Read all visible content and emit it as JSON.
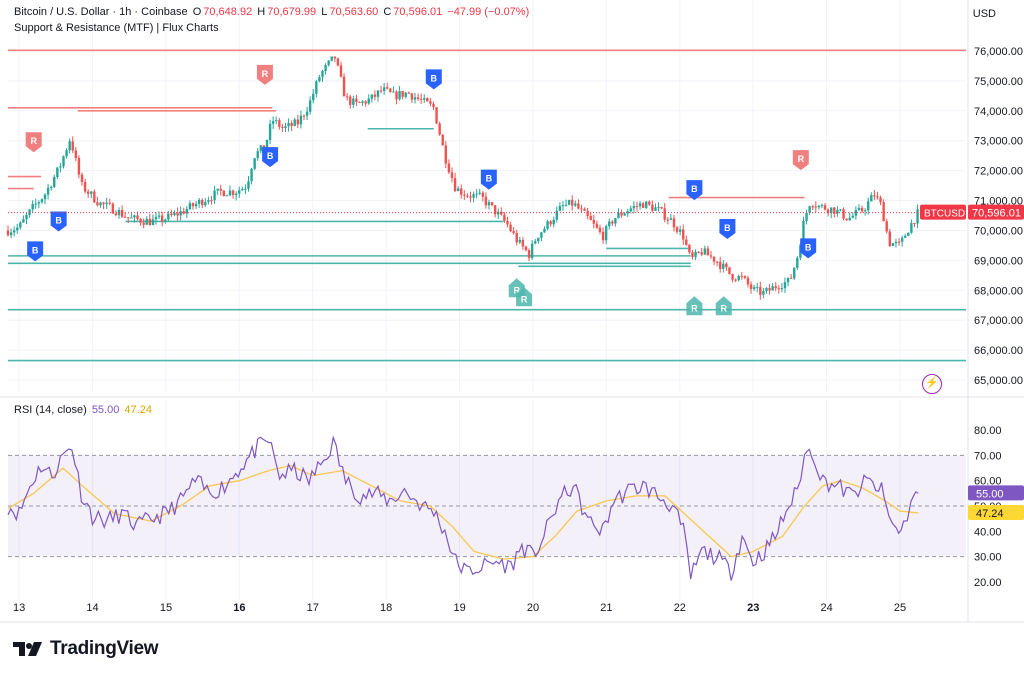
{
  "header": {
    "symbol_name": "Bitcoin / U.S. Dollar · 1h · Coinbase",
    "open_label": "O",
    "open": "70,648.92",
    "high_label": "H",
    "high": "70,679.99",
    "low_label": "L",
    "low": "70,563.60",
    "close_label": "C",
    "close": "70,596.01",
    "change": "−47.99 (−0.07%)",
    "indicator": "Support & Resistance (MTF) | Flux Charts",
    "currency": "USD"
  },
  "rsi_header": {
    "label": "RSI (14, close)",
    "rsi_value": "55.00",
    "ma_value": "47.24"
  },
  "logo_text": "TradingView",
  "colors": {
    "up": "#26a69a",
    "down": "#ef5350",
    "support": "#4db6ac",
    "resistance": "#f08080",
    "rsi": "#7e57c2",
    "rsi_ma": "#f9c74f",
    "buy": "#2962ff"
  },
  "chart_data": [
    {
      "type": "candlestick",
      "x_ticks": [
        "13",
        "14",
        "15",
        "16",
        "17",
        "18",
        "19",
        "20",
        "21",
        "22",
        "23",
        "24",
        "25"
      ],
      "x_ticks_bold": [
        "16",
        "23"
      ],
      "y_ticks": [
        "76,000.00",
        "75,000.00",
        "74,000.00",
        "73,000.00",
        "72,000.00",
        "71,000.00",
        "70,000.00",
        "69,000.00",
        "68,000.00",
        "67,000.00",
        "66,000.00",
        "65,000.00"
      ],
      "ylim": [
        64600,
        76500
      ],
      "last_price": 70596.01,
      "last_price_label": "70,596.01",
      "symbol_tag": "BTCUSD",
      "price_path": [
        [
          12.85,
          70000
        ],
        [
          13.0,
          70100
        ],
        [
          13.2,
          70800
        ],
        [
          13.35,
          71200
        ],
        [
          13.55,
          72100
        ],
        [
          13.7,
          73100
        ],
        [
          13.85,
          71500
        ],
        [
          14.1,
          70900
        ],
        [
          14.3,
          70700
        ],
        [
          14.5,
          70400
        ],
        [
          14.8,
          70300
        ],
        [
          15.0,
          70400
        ],
        [
          15.2,
          70600
        ],
        [
          15.5,
          71000
        ],
        [
          15.75,
          71300
        ],
        [
          15.95,
          71300
        ],
        [
          16.1,
          71500
        ],
        [
          16.2,
          72500
        ],
        [
          16.35,
          72800
        ],
        [
          16.45,
          73700
        ],
        [
          16.6,
          73400
        ],
        [
          16.8,
          73600
        ],
        [
          16.95,
          74200
        ],
        [
          17.1,
          75200
        ],
        [
          17.3,
          75800
        ],
        [
          17.45,
          74400
        ],
        [
          17.6,
          74200
        ],
        [
          17.8,
          74400
        ],
        [
          17.95,
          74700
        ],
        [
          18.1,
          74500
        ],
        [
          18.3,
          74600
        ],
        [
          18.5,
          74300
        ],
        [
          18.65,
          74100
        ],
        [
          18.8,
          72500
        ],
        [
          18.95,
          71400
        ],
        [
          19.1,
          71200
        ],
        [
          19.3,
          71100
        ],
        [
          19.5,
          70600
        ],
        [
          19.65,
          70200
        ],
        [
          19.8,
          69600
        ],
        [
          19.95,
          69200
        ],
        [
          20.05,
          69800
        ],
        [
          20.2,
          70200
        ],
        [
          20.4,
          70800
        ],
        [
          20.55,
          70900
        ],
        [
          20.75,
          70400
        ],
        [
          20.95,
          69800
        ],
        [
          21.1,
          70400
        ],
        [
          21.3,
          70700
        ],
        [
          21.5,
          70900
        ],
        [
          21.7,
          70700
        ],
        [
          21.9,
          70300
        ],
        [
          22.05,
          69800
        ],
        [
          22.15,
          69000
        ],
        [
          22.3,
          69300
        ],
        [
          22.5,
          69000
        ],
        [
          22.7,
          68500
        ],
        [
          22.85,
          68400
        ],
        [
          23.0,
          68000
        ],
        [
          23.15,
          67900
        ],
        [
          23.35,
          68200
        ],
        [
          23.5,
          68300
        ],
        [
          23.6,
          69100
        ],
        [
          23.7,
          70400
        ],
        [
          23.78,
          71000
        ],
        [
          23.9,
          70800
        ],
        [
          24.1,
          70700
        ],
        [
          24.3,
          70400
        ],
        [
          24.5,
          70700
        ],
        [
          24.65,
          71200
        ],
        [
          24.75,
          70800
        ],
        [
          24.85,
          69600
        ],
        [
          25.0,
          69500
        ],
        [
          25.1,
          70000
        ],
        [
          25.25,
          70596
        ]
      ],
      "levels": [
        {
          "kind": "resistance",
          "price": 76020,
          "x_from": 12.85,
          "x_to": 25.9
        },
        {
          "kind": "resistance",
          "price": 74100,
          "x_from": 12.85,
          "x_to": 16.45
        },
        {
          "kind": "resistance",
          "price": 74000,
          "x_from": 13.8,
          "x_to": 16.5
        },
        {
          "kind": "resistance",
          "price": 71800,
          "x_from": 12.85,
          "x_to": 13.3
        },
        {
          "kind": "resistance",
          "price": 71400,
          "x_from": 12.85,
          "x_to": 13.2
        },
        {
          "kind": "resistance",
          "price": 71100,
          "x_from": 21.85,
          "x_to": 23.7
        },
        {
          "kind": "support",
          "price": 73400,
          "x_from": 17.75,
          "x_to": 18.65
        },
        {
          "kind": "support",
          "price": 70300,
          "x_from": 14.45,
          "x_to": 19.6
        },
        {
          "kind": "support",
          "price": 69400,
          "x_from": 21.0,
          "x_to": 22.15
        },
        {
          "kind": "support",
          "price": 69150,
          "x_from": 12.85,
          "x_to": 22.15
        },
        {
          "kind": "support",
          "price": 68900,
          "x_from": 12.85,
          "x_to": 22.15
        },
        {
          "kind": "support",
          "price": 68800,
          "x_from": 19.8,
          "x_to": 22.15
        },
        {
          "kind": "support",
          "price": 67350,
          "x_from": 12.85,
          "x_to": 25.9
        },
        {
          "kind": "support",
          "price": 65650,
          "x_from": 12.85,
          "x_to": 25.9
        }
      ],
      "signals": [
        {
          "label": "R",
          "kind": "resistance",
          "x": 13.2,
          "price": 72950
        },
        {
          "label": "R",
          "kind": "resistance",
          "x": 16.35,
          "price": 75200
        },
        {
          "label": "R",
          "kind": "resistance",
          "x": 23.65,
          "price": 72350
        },
        {
          "label": "B",
          "kind": "buy",
          "x": 13.22,
          "price": 69300
        },
        {
          "label": "B",
          "kind": "buy",
          "x": 13.54,
          "price": 70300
        },
        {
          "label": "B",
          "kind": "buy",
          "x": 16.42,
          "price": 72450
        },
        {
          "label": "B",
          "kind": "buy",
          "x": 18.65,
          "price": 75050
        },
        {
          "label": "B",
          "kind": "buy",
          "x": 19.4,
          "price": 71700
        },
        {
          "label": "B",
          "kind": "buy",
          "x": 22.2,
          "price": 71350
        },
        {
          "label": "B",
          "kind": "buy",
          "x": 22.65,
          "price": 70050
        },
        {
          "label": "B",
          "kind": "buy",
          "x": 23.75,
          "price": 69400
        },
        {
          "label": "R",
          "kind": "support",
          "x": 19.78,
          "price": 68300
        },
        {
          "label": "R",
          "kind": "support",
          "x": 19.88,
          "price": 68000
        },
        {
          "label": "R",
          "kind": "support",
          "x": 22.2,
          "price": 67700
        },
        {
          "label": "R",
          "kind": "support",
          "x": 22.6,
          "price": 67700
        }
      ]
    },
    {
      "type": "line",
      "name": "RSI (14, close)",
      "y_ticks": [
        "80.00",
        "70.00",
        "60.00",
        "50.00",
        "40.00",
        "30.00",
        "20.00"
      ],
      "ylim": [
        16,
        84
      ],
      "upper_band": 70,
      "middle_band": 50,
      "lower_band": 30,
      "rsi_last": 55.0,
      "rsi_last_label": "55.00",
      "ma_last": 47.24,
      "ma_last_label": "47.24",
      "rsi_path": [
        [
          12.85,
          50
        ],
        [
          13.0,
          47
        ],
        [
          13.15,
          58
        ],
        [
          13.3,
          66
        ],
        [
          13.45,
          62
        ],
        [
          13.6,
          70
        ],
        [
          13.72,
          74
        ],
        [
          13.85,
          55
        ],
        [
          14.0,
          46
        ],
        [
          14.2,
          44
        ],
        [
          14.4,
          47
        ],
        [
          14.6,
          42
        ],
        [
          14.8,
          45
        ],
        [
          15.0,
          47
        ],
        [
          15.2,
          52
        ],
        [
          15.4,
          60
        ],
        [
          15.6,
          55
        ],
        [
          15.8,
          58
        ],
        [
          15.95,
          63
        ],
        [
          16.1,
          68
        ],
        [
          16.25,
          73
        ],
        [
          16.4,
          76
        ],
        [
          16.55,
          62
        ],
        [
          16.75,
          64
        ],
        [
          16.95,
          60
        ],
        [
          17.15,
          68
        ],
        [
          17.28,
          75
        ],
        [
          17.45,
          60
        ],
        [
          17.65,
          54
        ],
        [
          17.85,
          55
        ],
        [
          18.05,
          52
        ],
        [
          18.25,
          56
        ],
        [
          18.5,
          50
        ],
        [
          18.65,
          48
        ],
        [
          18.8,
          40
        ],
        [
          18.95,
          28
        ],
        [
          19.1,
          24
        ],
        [
          19.3,
          26
        ],
        [
          19.5,
          28
        ],
        [
          19.7,
          26
        ],
        [
          19.85,
          34
        ],
        [
          20.0,
          30
        ],
        [
          20.15,
          38
        ],
        [
          20.35,
          52
        ],
        [
          20.55,
          58
        ],
        [
          20.75,
          44
        ],
        [
          20.95,
          40
        ],
        [
          21.1,
          52
        ],
        [
          21.3,
          56
        ],
        [
          21.5,
          58
        ],
        [
          21.7,
          54
        ],
        [
          21.9,
          50
        ],
        [
          22.05,
          40
        ],
        [
          22.15,
          22
        ],
        [
          22.3,
          32
        ],
        [
          22.5,
          30
        ],
        [
          22.7,
          24
        ],
        [
          22.85,
          38
        ],
        [
          23.0,
          28
        ],
        [
          23.15,
          32
        ],
        [
          23.3,
          38
        ],
        [
          23.45,
          48
        ],
        [
          23.6,
          56
        ],
        [
          23.7,
          70
        ],
        [
          23.8,
          72
        ],
        [
          23.95,
          60
        ],
        [
          24.15,
          58
        ],
        [
          24.35,
          54
        ],
        [
          24.55,
          60
        ],
        [
          24.75,
          56
        ],
        [
          24.85,
          46
        ],
        [
          24.95,
          40
        ],
        [
          25.05,
          42
        ],
        [
          25.15,
          52
        ],
        [
          25.25,
          55
        ]
      ],
      "ma_path": [
        [
          12.85,
          49
        ],
        [
          13.2,
          55
        ],
        [
          13.6,
          65
        ],
        [
          13.9,
          57
        ],
        [
          14.3,
          47
        ],
        [
          14.8,
          44
        ],
        [
          15.2,
          50
        ],
        [
          15.6,
          58
        ],
        [
          16.0,
          60
        ],
        [
          16.4,
          64
        ],
        [
          16.7,
          66
        ],
        [
          17.0,
          62
        ],
        [
          17.4,
          64
        ],
        [
          17.8,
          58
        ],
        [
          18.2,
          52
        ],
        [
          18.6,
          50
        ],
        [
          18.9,
          42
        ],
        [
          19.2,
          32
        ],
        [
          19.6,
          29
        ],
        [
          20.0,
          30
        ],
        [
          20.3,
          38
        ],
        [
          20.6,
          48
        ],
        [
          21.0,
          52
        ],
        [
          21.4,
          54
        ],
        [
          21.8,
          54
        ],
        [
          22.1,
          46
        ],
        [
          22.4,
          38
        ],
        [
          22.7,
          30
        ],
        [
          23.0,
          32
        ],
        [
          23.4,
          38
        ],
        [
          23.7,
          50
        ],
        [
          23.95,
          58
        ],
        [
          24.2,
          60
        ],
        [
          24.5,
          57
        ],
        [
          24.8,
          52
        ],
        [
          25.0,
          48
        ],
        [
          25.25,
          47.24
        ]
      ]
    }
  ]
}
